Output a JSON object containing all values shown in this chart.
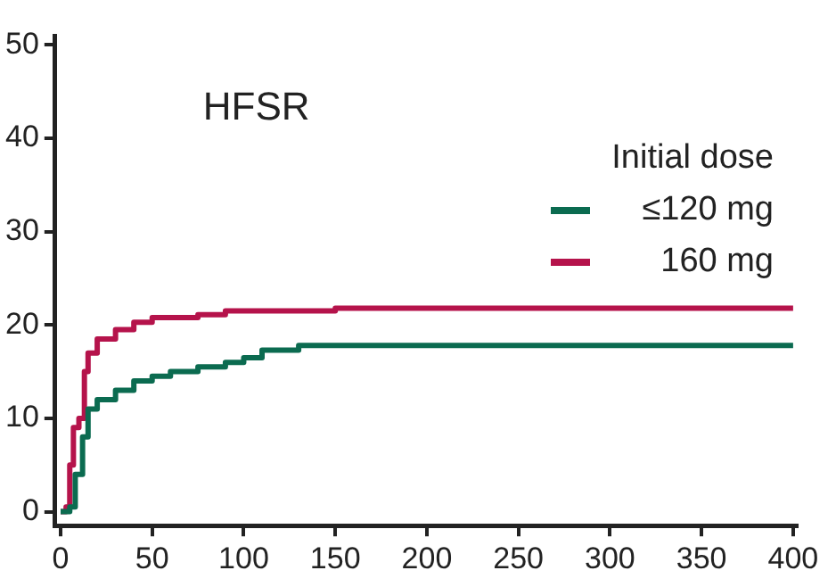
{
  "chart_data": {
    "type": "step",
    "title": "HFSR",
    "legend_title": "Initial dose",
    "legend": "top right",
    "grid": false,
    "marker": "none",
    "line_style": "solid",
    "xlim": [
      -3,
      402
    ],
    "xticks": [
      0,
      50,
      100,
      150,
      200,
      250,
      300,
      350,
      400
    ],
    "ylim": [
      -1.5,
      51
    ],
    "yticks": [
      0,
      10,
      20,
      30,
      40,
      50
    ],
    "series": [
      {
        "name": "≤120 mg",
        "color": "#0b6b50",
        "x": [
          0,
          5,
          8,
          12,
          15,
          20,
          30,
          40,
          50,
          60,
          75,
          90,
          100,
          110,
          130,
          400
        ],
        "values": [
          0,
          0.5,
          4,
          8,
          11,
          12,
          13,
          14,
          14.5,
          15,
          15.5,
          16,
          16.5,
          17.3,
          17.8,
          17.8
        ]
      },
      {
        "name": "160 mg",
        "color": "#b5134b",
        "x": [
          0,
          3,
          5,
          7,
          10,
          13,
          15,
          20,
          30,
          40,
          50,
          75,
          90,
          150,
          400
        ],
        "values": [
          0,
          0.5,
          5,
          9,
          10,
          15,
          17,
          18.5,
          19.5,
          20.3,
          20.8,
          21.1,
          21.5,
          21.8,
          21.8
        ]
      }
    ]
  }
}
